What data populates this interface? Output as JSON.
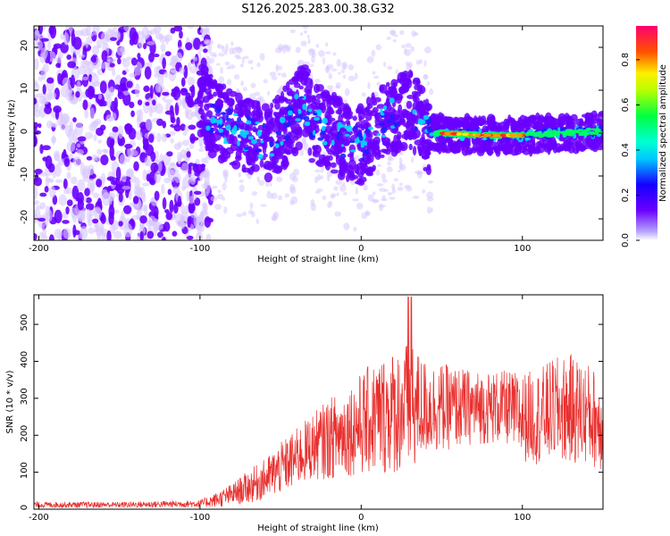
{
  "title": "S126.2025.283.00.38.G32",
  "colors": {
    "snr_line": "#e8302e",
    "low_amp": "#6a00ff",
    "scatter_faint": "#d8c2ff"
  },
  "chart_data": [
    {
      "type": "heatmap",
      "title": "S126.2025.283.00.38.G32",
      "xlabel": "Height of straight line (km)",
      "ylabel": "Frequency (Hz)",
      "xlim": [
        -203,
        150
      ],
      "ylim": [
        -25,
        25
      ],
      "xticks": [
        -200,
        -100,
        0,
        100
      ],
      "yticks": [
        -20,
        -10,
        0,
        10,
        20
      ],
      "colorbar": {
        "label": "Normalized spectral amplitude",
        "range": [
          0.0,
          0.95
        ],
        "ticks": [
          0.0,
          0.2,
          0.4,
          0.6,
          0.8
        ],
        "tick_labels": [
          "0.0",
          "0.2",
          "0.4",
          "0.6",
          "0.8"
        ]
      },
      "trend": {
        "x": [
          -200,
          -150,
          -100,
          -90,
          -80,
          -70,
          -60,
          -50,
          -40,
          -35,
          -30,
          -20,
          -10,
          0,
          10,
          20,
          25,
          30,
          40,
          50,
          75,
          100,
          125,
          150
        ],
        "y": [
          0,
          0,
          7,
          3,
          1,
          0,
          -2,
          0,
          5,
          7,
          2,
          1,
          -2,
          -3,
          1,
          4,
          5,
          6,
          0,
          0,
          -0.5,
          -0.5,
          0,
          0.5
        ]
      }
    },
    {
      "type": "line",
      "xlabel": "Height of straight line (km)",
      "ylabel": "SNR (10 * v/v)",
      "xlim": [
        -203,
        150
      ],
      "ylim": [
        0,
        580
      ],
      "xticks": [
        -200,
        -100,
        0,
        100
      ],
      "yticks": [
        0,
        100,
        200,
        300,
        400,
        500
      ],
      "series": [
        {
          "envelope": {
            "x": [
              -203,
              -150,
              -100,
              -90,
              -80,
              -70,
              -60,
              -50,
              -40,
              -30,
              -20,
              -10,
              0,
              10,
              20,
              30,
              40,
              50,
              60,
              70,
              80,
              90,
              100,
              110,
              120,
              130,
              140,
              150
            ],
            "mean": [
              12,
              12,
              15,
              25,
              40,
              60,
              80,
              110,
              140,
              170,
              190,
              210,
              230,
              250,
              265,
              275,
              275,
              275,
              275,
              275,
              275,
              275,
              250,
              250,
              270,
              270,
              260,
              230
            ],
            "spread": [
              8,
              8,
              10,
              20,
              30,
              45,
              55,
              70,
              80,
              90,
              110,
              120,
              140,
              160,
              170,
              180,
              130,
              120,
              110,
              100,
              100,
              100,
              120,
              130,
              140,
              150,
              140,
              130
            ]
          }
        }
      ]
    }
  ]
}
